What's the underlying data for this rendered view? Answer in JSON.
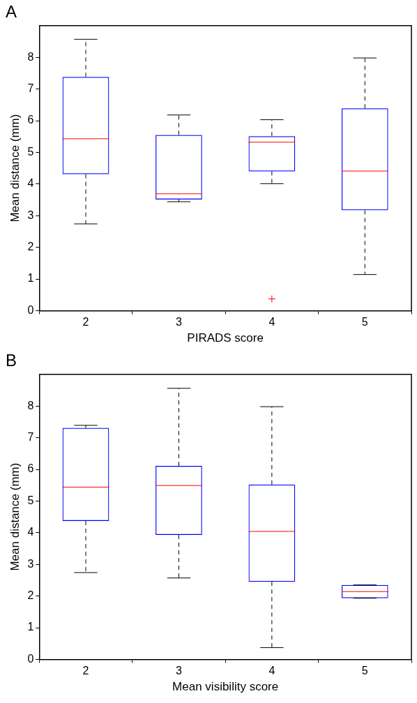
{
  "chart_data": [
    {
      "type": "box",
      "title": "A",
      "xlabel": "PIRADS score",
      "ylabel": "Mean distance (mm)",
      "categories": [
        "2",
        "3",
        "4",
        "5"
      ],
      "color": "#0000ff",
      "boxes": [
        {
          "low": 2.74,
          "q1": 4.31,
          "median": 5.43,
          "q3": 7.38,
          "high": 8.57
        },
        {
          "low": 3.44,
          "q1": 3.51,
          "median": 3.69,
          "q3": 5.55,
          "high": 6.18
        },
        {
          "low": 4.01,
          "q1": 4.4,
          "median": 5.32,
          "q3": 5.51,
          "high": 6.03,
          "outliers": [
            0.37
          ]
        },
        {
          "low": 1.14,
          "q1": 3.17,
          "median": 4.41,
          "q3": 6.39,
          "high": 7.98
        }
      ],
      "ylim": [
        0,
        9
      ],
      "yticks": [
        0,
        1,
        2,
        3,
        4,
        5,
        6,
        7,
        8
      ],
      "grid": false,
      "legend": false
    },
    {
      "type": "box",
      "title": "B",
      "xlabel": "Mean visibility score",
      "ylabel": "Mean distance (mm)",
      "categories": [
        "2",
        "3",
        "4",
        "5"
      ],
      "color": "#0000ff",
      "boxes": [
        {
          "low": 2.74,
          "q1": 4.37,
          "median": 5.44,
          "q3": 7.31,
          "high": 7.39
        },
        {
          "low": 2.57,
          "q1": 3.93,
          "median": 5.49,
          "q3": 6.11,
          "high": 8.56
        },
        {
          "low": 0.37,
          "q1": 2.45,
          "median": 4.04,
          "q3": 5.52,
          "high": 7.98
        },
        {
          "low": 1.93,
          "q1": 1.93,
          "median": 2.14,
          "q3": 2.35,
          "high": 2.35
        }
      ],
      "ylim": [
        0,
        9
      ],
      "yticks": [
        0,
        1,
        2,
        3,
        4,
        5,
        6,
        7,
        8
      ],
      "grid": false,
      "legend": false
    }
  ]
}
